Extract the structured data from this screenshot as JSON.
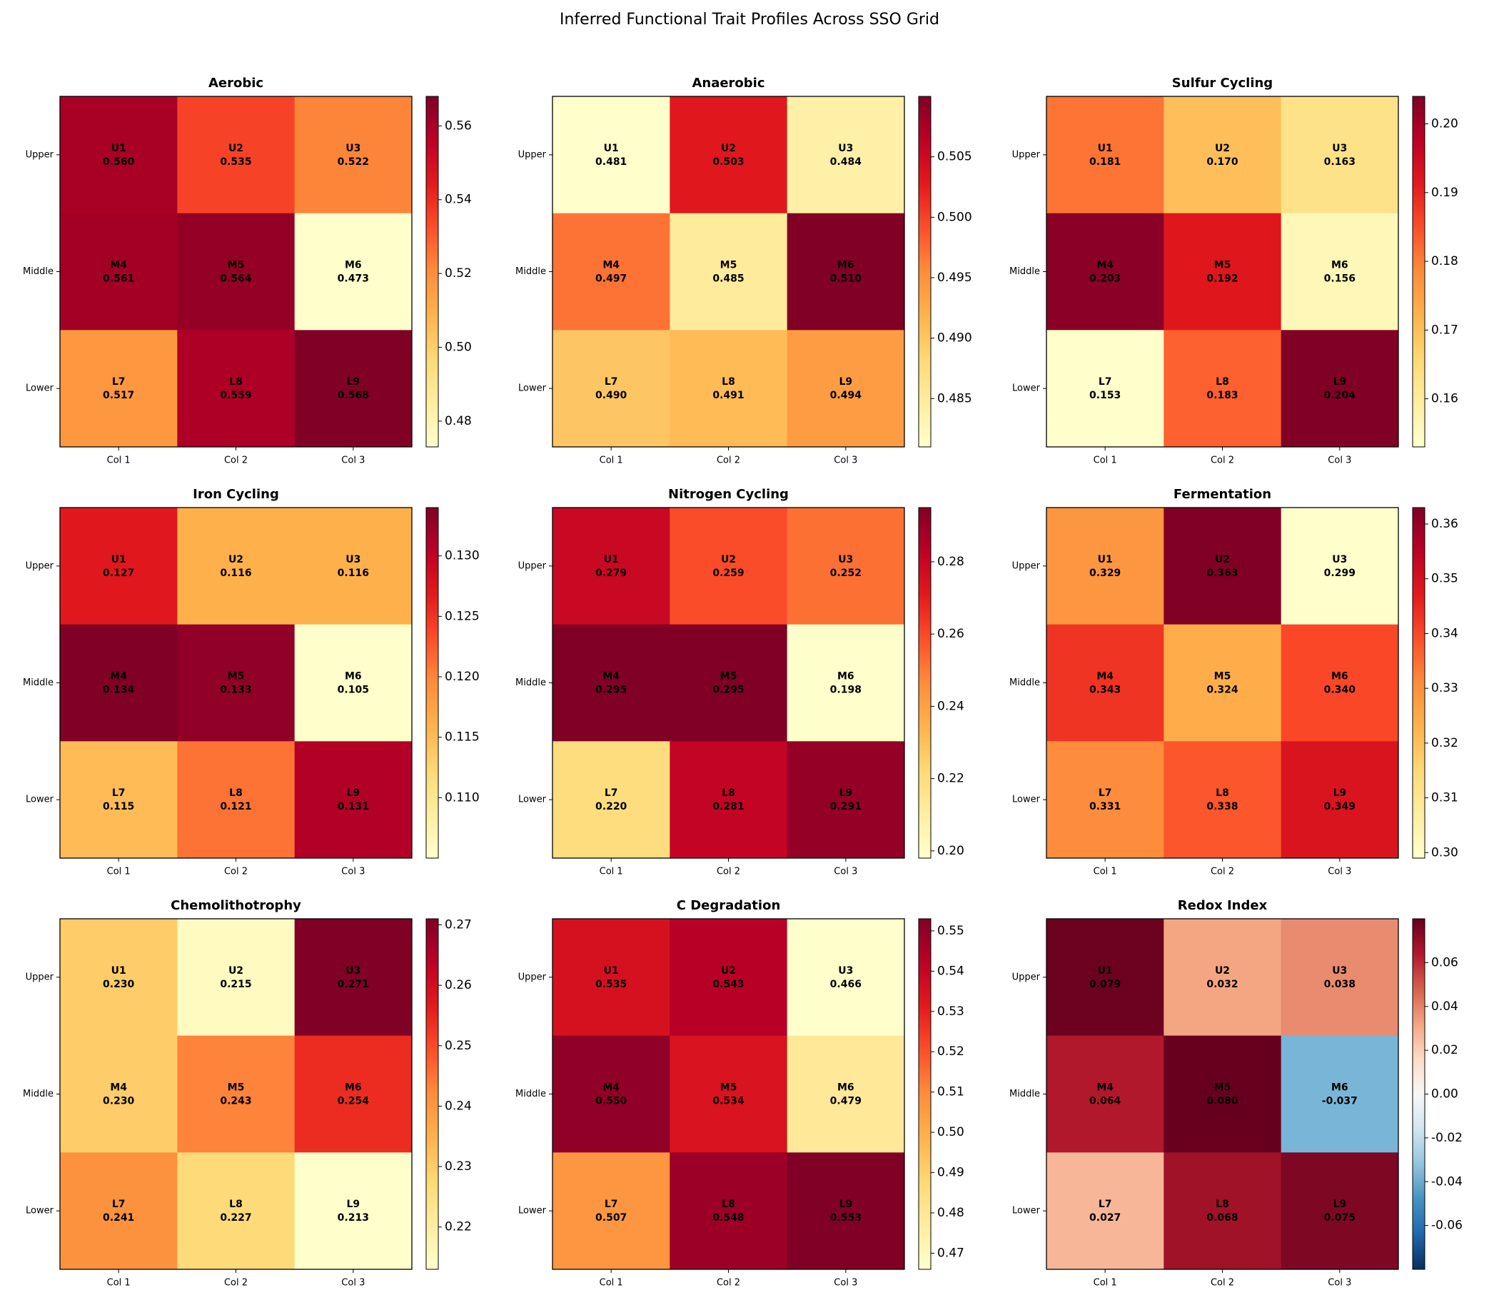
{
  "title": "Inferred Functional Trait Profiles Across SSO Grid",
  "chart_data": [
    {
      "type": "heatmap",
      "title": "Aerobic",
      "rows": [
        "Upper",
        "Middle",
        "Lower"
      ],
      "columns": [
        "Col 1",
        "Col 2",
        "Col 3"
      ],
      "cells": [
        [
          "U1",
          "U2",
          "U3"
        ],
        [
          "M4",
          "M5",
          "M6"
        ],
        [
          "L7",
          "L8",
          "L9"
        ]
      ],
      "values": [
        [
          0.56,
          0.535,
          0.522
        ],
        [
          0.561,
          0.564,
          0.473
        ],
        [
          0.517,
          0.559,
          0.568
        ]
      ],
      "value_labels": [
        [
          "0.560",
          "0.535",
          "0.522"
        ],
        [
          "0.561",
          "0.564",
          "0.473"
        ],
        [
          "0.517",
          "0.559",
          "0.568"
        ]
      ],
      "colormap": "YlOrRd",
      "clim": [
        0.473,
        0.568
      ],
      "cticks": [
        0.48,
        {
          "value": 0.5,
          "label": "0.50"
        },
        0.52,
        0.54,
        0.56
      ]
    },
    {
      "type": "heatmap",
      "title": "Anaerobic",
      "rows": [
        "Upper",
        "Middle",
        "Lower"
      ],
      "columns": [
        "Col 1",
        "Col 2",
        "Col 3"
      ],
      "cells": [
        [
          "U1",
          "U2",
          "U3"
        ],
        [
          "M4",
          "M5",
          "M6"
        ],
        [
          "L7",
          "L8",
          "L9"
        ]
      ],
      "values": [
        [
          0.481,
          0.503,
          0.484
        ],
        [
          0.497,
          0.485,
          0.51
        ],
        [
          0.49,
          0.491,
          0.494
        ]
      ],
      "value_labels": [
        [
          "0.481",
          "0.503",
          "0.484"
        ],
        [
          "0.497",
          "0.485",
          "0.510"
        ],
        [
          "0.490",
          "0.491",
          "0.494"
        ]
      ],
      "colormap": "YlOrRd",
      "clim": [
        0.481,
        0.51
      ],
      "cticks": [
        0.485,
        {
          "value": 0.49,
          "label": "0.490"
        },
        0.495,
        {
          "value": 0.5,
          "label": "0.500"
        },
        0.505
      ]
    },
    {
      "type": "heatmap",
      "title": "Sulfur Cycling",
      "rows": [
        "Upper",
        "Middle",
        "Lower"
      ],
      "columns": [
        "Col 1",
        "Col 2",
        "Col 3"
      ],
      "cells": [
        [
          "U1",
          "U2",
          "U3"
        ],
        [
          "M4",
          "M5",
          "M6"
        ],
        [
          "L7",
          "L8",
          "L9"
        ]
      ],
      "values": [
        [
          0.181,
          0.17,
          0.163
        ],
        [
          0.203,
          0.192,
          0.156
        ],
        [
          0.153,
          0.183,
          0.204
        ]
      ],
      "value_labels": [
        [
          "0.181",
          "0.170",
          "0.163"
        ],
        [
          "0.203",
          "0.192",
          "0.156"
        ],
        [
          "0.153",
          "0.183",
          "0.204"
        ]
      ],
      "colormap": "YlOrRd",
      "clim": [
        0.153,
        0.204
      ],
      "cticks": [
        0.16,
        0.17,
        0.18,
        0.19,
        {
          "value": 0.2,
          "label": "0.20"
        }
      ]
    },
    {
      "type": "heatmap",
      "title": "Iron Cycling",
      "rows": [
        "Upper",
        "Middle",
        "Lower"
      ],
      "columns": [
        "Col 1",
        "Col 2",
        "Col 3"
      ],
      "cells": [
        [
          "U1",
          "U2",
          "U3"
        ],
        [
          "M4",
          "M5",
          "M6"
        ],
        [
          "L7",
          "L8",
          "L9"
        ]
      ],
      "values": [
        [
          0.127,
          0.116,
          0.116
        ],
        [
          0.134,
          0.133,
          0.105
        ],
        [
          0.115,
          0.121,
          0.131
        ]
      ],
      "value_labels": [
        [
          "0.127",
          "0.116",
          "0.116"
        ],
        [
          "0.134",
          "0.133",
          "0.105"
        ],
        [
          "0.115",
          "0.121",
          "0.131"
        ]
      ],
      "colormap": "YlOrRd",
      "clim": [
        0.105,
        0.134
      ],
      "cticks": [
        {
          "value": 0.11,
          "label": "0.110"
        },
        0.115,
        {
          "value": 0.12,
          "label": "0.120"
        },
        0.125,
        {
          "value": 0.13,
          "label": "0.130"
        }
      ]
    },
    {
      "type": "heatmap",
      "title": "Nitrogen Cycling",
      "rows": [
        "Upper",
        "Middle",
        "Lower"
      ],
      "columns": [
        "Col 1",
        "Col 2",
        "Col 3"
      ],
      "cells": [
        [
          "U1",
          "U2",
          "U3"
        ],
        [
          "M4",
          "M5",
          "M6"
        ],
        [
          "L7",
          "L8",
          "L9"
        ]
      ],
      "values": [
        [
          0.279,
          0.259,
          0.252
        ],
        [
          0.295,
          0.295,
          0.198
        ],
        [
          0.22,
          0.281,
          0.291
        ]
      ],
      "value_labels": [
        [
          "0.279",
          "0.259",
          "0.252"
        ],
        [
          "0.295",
          "0.295",
          "0.198"
        ],
        [
          "0.220",
          "0.281",
          "0.291"
        ]
      ],
      "colormap": "YlOrRd",
      "clim": [
        0.198,
        0.295
      ],
      "cticks": [
        {
          "value": 0.2,
          "label": "0.20"
        },
        0.22,
        0.24,
        0.26,
        0.28
      ]
    },
    {
      "type": "heatmap",
      "title": "Fermentation",
      "rows": [
        "Upper",
        "Middle",
        "Lower"
      ],
      "columns": [
        "Col 1",
        "Col 2",
        "Col 3"
      ],
      "cells": [
        [
          "U1",
          "U2",
          "U3"
        ],
        [
          "M4",
          "M5",
          "M6"
        ],
        [
          "L7",
          "L8",
          "L9"
        ]
      ],
      "values": [
        [
          0.329,
          0.363,
          0.299
        ],
        [
          0.343,
          0.324,
          0.34
        ],
        [
          0.331,
          0.338,
          0.349
        ]
      ],
      "value_labels": [
        [
          "0.329",
          "0.363",
          "0.299"
        ],
        [
          "0.343",
          "0.324",
          "0.340"
        ],
        [
          "0.331",
          "0.338",
          "0.349"
        ]
      ],
      "colormap": "YlOrRd",
      "clim": [
        0.299,
        0.363
      ],
      "cticks": [
        {
          "value": 0.3,
          "label": "0.30"
        },
        0.31,
        0.32,
        0.33,
        0.34,
        0.35,
        0.36
      ]
    },
    {
      "type": "heatmap",
      "title": "Chemolithotrophy",
      "rows": [
        "Upper",
        "Middle",
        "Lower"
      ],
      "columns": [
        "Col 1",
        "Col 2",
        "Col 3"
      ],
      "cells": [
        [
          "U1",
          "U2",
          "U3"
        ],
        [
          "M4",
          "M5",
          "M6"
        ],
        [
          "L7",
          "L8",
          "L9"
        ]
      ],
      "values": [
        [
          0.23,
          0.215,
          0.271
        ],
        [
          0.23,
          0.243,
          0.254
        ],
        [
          0.241,
          0.227,
          0.213
        ]
      ],
      "value_labels": [
        [
          "0.230",
          "0.215",
          "0.271"
        ],
        [
          "0.230",
          "0.243",
          "0.254"
        ],
        [
          "0.241",
          "0.227",
          "0.213"
        ]
      ],
      "colormap": "YlOrRd",
      "clim": [
        0.213,
        0.271
      ],
      "cticks": [
        0.22,
        0.23,
        0.24,
        0.25,
        0.26,
        0.27
      ]
    },
    {
      "type": "heatmap",
      "title": "C Degradation",
      "rows": [
        "Upper",
        "Middle",
        "Lower"
      ],
      "columns": [
        "Col 1",
        "Col 2",
        "Col 3"
      ],
      "cells": [
        [
          "U1",
          "U2",
          "U3"
        ],
        [
          "M4",
          "M5",
          "M6"
        ],
        [
          "L7",
          "L8",
          "L9"
        ]
      ],
      "values": [
        [
          0.535,
          0.543,
          0.466
        ],
        [
          0.55,
          0.534,
          0.479
        ],
        [
          0.507,
          0.548,
          0.553
        ]
      ],
      "value_labels": [
        [
          "0.535",
          "0.543",
          "0.466"
        ],
        [
          "0.550",
          "0.534",
          "0.479"
        ],
        [
          "0.507",
          "0.548",
          "0.553"
        ]
      ],
      "colormap": "YlOrRd",
      "clim": [
        0.466,
        0.553
      ],
      "cticks": [
        0.47,
        0.48,
        0.49,
        {
          "value": 0.5,
          "label": "0.50"
        },
        0.51,
        0.52,
        0.53,
        0.54,
        0.55
      ]
    },
    {
      "type": "heatmap",
      "title": "Redox Index",
      "rows": [
        "Upper",
        "Middle",
        "Lower"
      ],
      "columns": [
        "Col 1",
        "Col 2",
        "Col 3"
      ],
      "cells": [
        [
          "U1",
          "U2",
          "U3"
        ],
        [
          "M4",
          "M5",
          "M6"
        ],
        [
          "L7",
          "L8",
          "L9"
        ]
      ],
      "values": [
        [
          0.079,
          0.032,
          0.038
        ],
        [
          0.064,
          0.08,
          -0.037
        ],
        [
          0.027,
          0.068,
          0.075
        ]
      ],
      "value_labels": [
        [
          "0.079",
          "0.032",
          "0.038"
        ],
        [
          "0.064",
          "0.080",
          "-0.037"
        ],
        [
          "0.027",
          "0.068",
          "0.075"
        ]
      ],
      "colormap": "RdBu_r",
      "clim": [
        -0.08,
        0.08
      ],
      "cticks": [
        -0.06,
        -0.04,
        -0.02,
        {
          "value": 0,
          "label": "0.00"
        },
        0.02,
        0.04,
        0.06
      ]
    }
  ]
}
